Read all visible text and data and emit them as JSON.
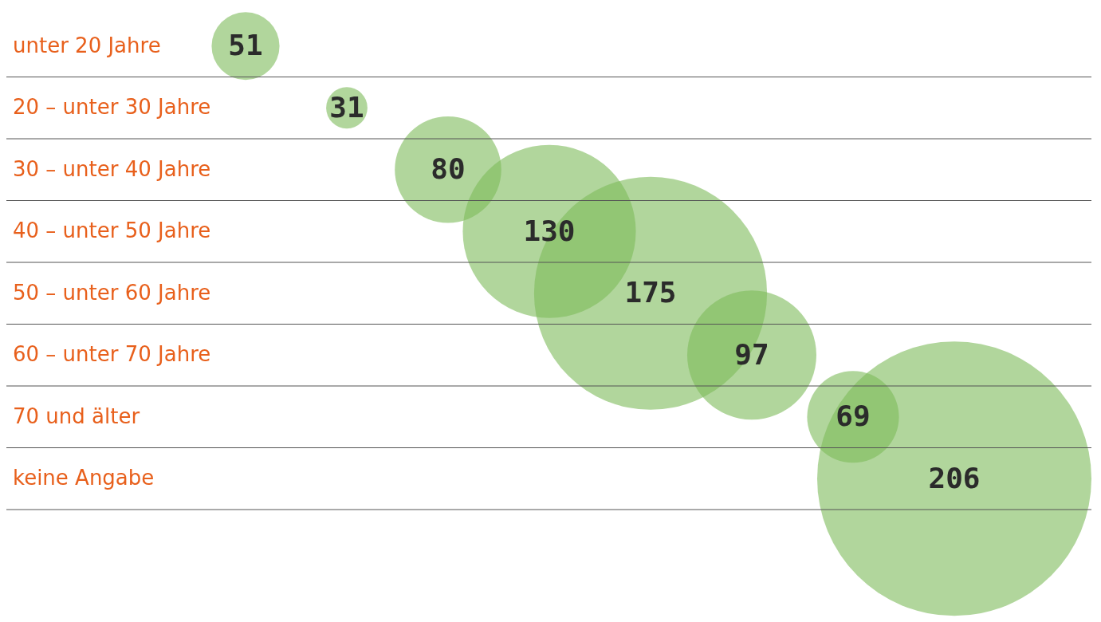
{
  "chart_data": {
    "type": "other",
    "categories": [
      "unter 20 Jahre",
      "20 – unter 30 Jahre",
      "30 – unter 40 Jahre",
      "40 – unter 50 Jahre",
      "50 – unter 60 Jahre",
      "60 – unter 70 Jahre",
      "70 und älter",
      "keine Angabe"
    ],
    "values": [
      51,
      31,
      80,
      130,
      175,
      97,
      69,
      206
    ],
    "data_labels": true,
    "color": "#7dbb5a"
  }
}
